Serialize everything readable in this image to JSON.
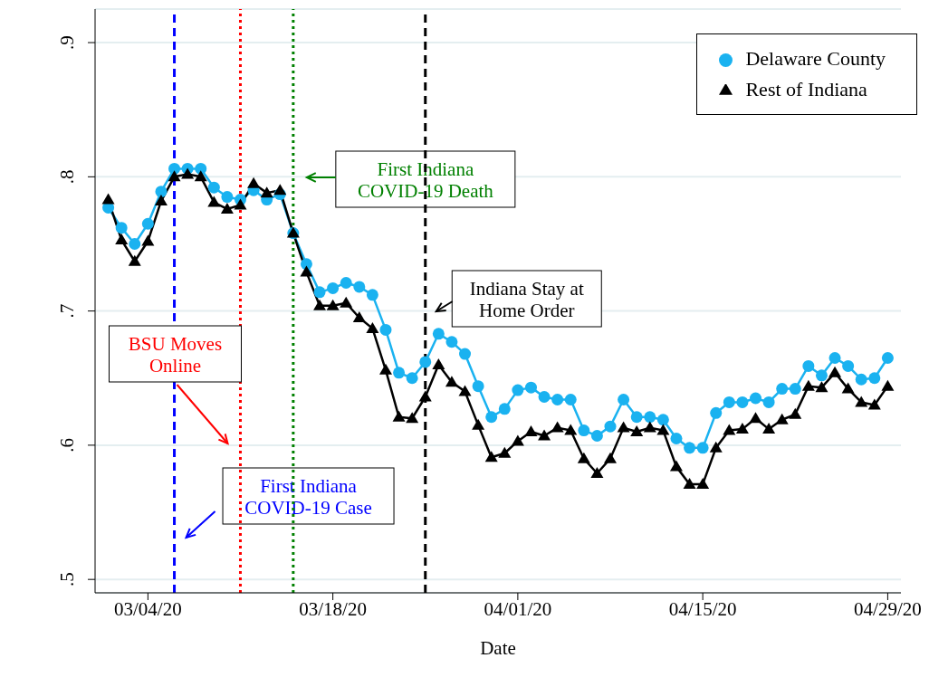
{
  "chart_data": {
    "type": "line",
    "xlabel": "Date",
    "x": [
      "--03-01",
      "--03-02",
      "--03-03",
      "--03-04",
      "--03-05",
      "--03-06",
      "--03-07",
      "--03-08",
      "--03-09",
      "--03-10",
      "--03-11",
      "--03-12",
      "--03-13",
      "--03-14",
      "--03-15",
      "--03-16",
      "--03-17",
      "--03-18",
      "--03-19",
      "--03-20",
      "--03-21",
      "--03-22",
      "--03-23",
      "--03-24",
      "--03-25",
      "--03-26",
      "--03-27",
      "--03-28",
      "--03-29",
      "--03-30",
      "--03-31",
      "--04-01",
      "--04-02",
      "--04-03",
      "--04-04",
      "--04-05",
      "--04-06",
      "--04-07",
      "--04-08",
      "--04-09",
      "--04-10",
      "--04-11",
      "--04-12",
      "--04-13",
      "--04-14",
      "--04-15",
      "--04-16",
      "--04-17",
      "--04-18",
      "--04-19",
      "--04-20",
      "--04-21",
      "--04-22",
      "--04-23",
      "--04-24",
      "--04-25",
      "--04-26",
      "--04-27",
      "--04-28",
      "--04-29"
    ],
    "series": [
      {
        "name": "Delaware County",
        "color": "#1ab2f0",
        "marker": "circle",
        "values": [
          0.777,
          0.762,
          0.75,
          0.765,
          0.789,
          0.806,
          0.806,
          0.806,
          0.792,
          0.785,
          0.783,
          0.79,
          0.783,
          0.787,
          0.758,
          0.735,
          0.714,
          0.717,
          0.721,
          0.718,
          0.712,
          0.686,
          0.654,
          0.65,
          0.662,
          0.683,
          0.677,
          0.668,
          0.644,
          0.621,
          0.627,
          0.641,
          0.643,
          0.636,
          0.634,
          0.634,
          0.611,
          0.607,
          0.614,
          0.634,
          0.621,
          0.621,
          0.619,
          0.605,
          0.598,
          0.598,
          0.624,
          0.632,
          0.632,
          0.635,
          0.632,
          0.642,
          0.642,
          0.659,
          0.652,
          0.665,
          0.659,
          0.649,
          0.65,
          0.665
        ]
      },
      {
        "name": "Rest of Indiana",
        "color": "#000000",
        "marker": "triangle",
        "values": [
          0.783,
          0.753,
          0.737,
          0.752,
          0.782,
          0.8,
          0.802,
          0.8,
          0.781,
          0.776,
          0.779,
          0.795,
          0.788,
          0.79,
          0.758,
          0.729,
          0.704,
          0.704,
          0.706,
          0.695,
          0.687,
          0.656,
          0.621,
          0.62,
          0.636,
          0.66,
          0.647,
          0.64,
          0.615,
          0.591,
          0.594,
          0.603,
          0.61,
          0.607,
          0.613,
          0.611,
          0.59,
          0.579,
          0.59,
          0.613,
          0.61,
          0.613,
          0.611,
          0.584,
          0.571,
          0.571,
          0.598,
          0.611,
          0.612,
          0.62,
          0.612,
          0.619,
          0.623,
          0.644,
          0.643,
          0.654,
          0.642,
          0.632,
          0.63,
          0.644
        ]
      }
    ],
    "xlim": [
      "--02-29",
      "--04-30"
    ],
    "xticks": [
      {
        "value": "--03-04",
        "label": "03/04/20"
      },
      {
        "value": "--03-18",
        "label": "03/18/20"
      },
      {
        "value": "--04-01",
        "label": "04/01/20"
      },
      {
        "value": "--04-15",
        "label": "04/15/20"
      },
      {
        "value": "--04-29",
        "label": "04/29/20"
      }
    ],
    "ylim": [
      0.49,
      0.925
    ],
    "yticks": [
      {
        "value": 0.5,
        "label": ".5"
      },
      {
        "value": 0.6,
        "label": ".6"
      },
      {
        "value": 0.7,
        "label": ".7"
      },
      {
        "value": 0.8,
        "label": ".8"
      },
      {
        "value": 0.9,
        "label": ".9"
      }
    ],
    "ref_lines": [
      {
        "axis": "x",
        "value": "--03-06",
        "label": "First Indiana\nCOVID-19 Case",
        "color": "#0000ff",
        "line_style": "dashed"
      },
      {
        "axis": "x",
        "value": "--03-11",
        "label": "BSU Moves\nOnline",
        "color": "#ff0000",
        "line_style": "dotted"
      },
      {
        "axis": "x",
        "value": "--03-15",
        "label": "First Indiana\nCOVID-19 Death",
        "color": "#008000",
        "line_style": "dotted"
      },
      {
        "axis": "x",
        "value": "--03-25",
        "label": "Indiana Stay at\nHome Order",
        "color": "#000000",
        "line_style": "dashed"
      }
    ],
    "grid": "y",
    "legend": "top right",
    "line_style": "solid"
  }
}
